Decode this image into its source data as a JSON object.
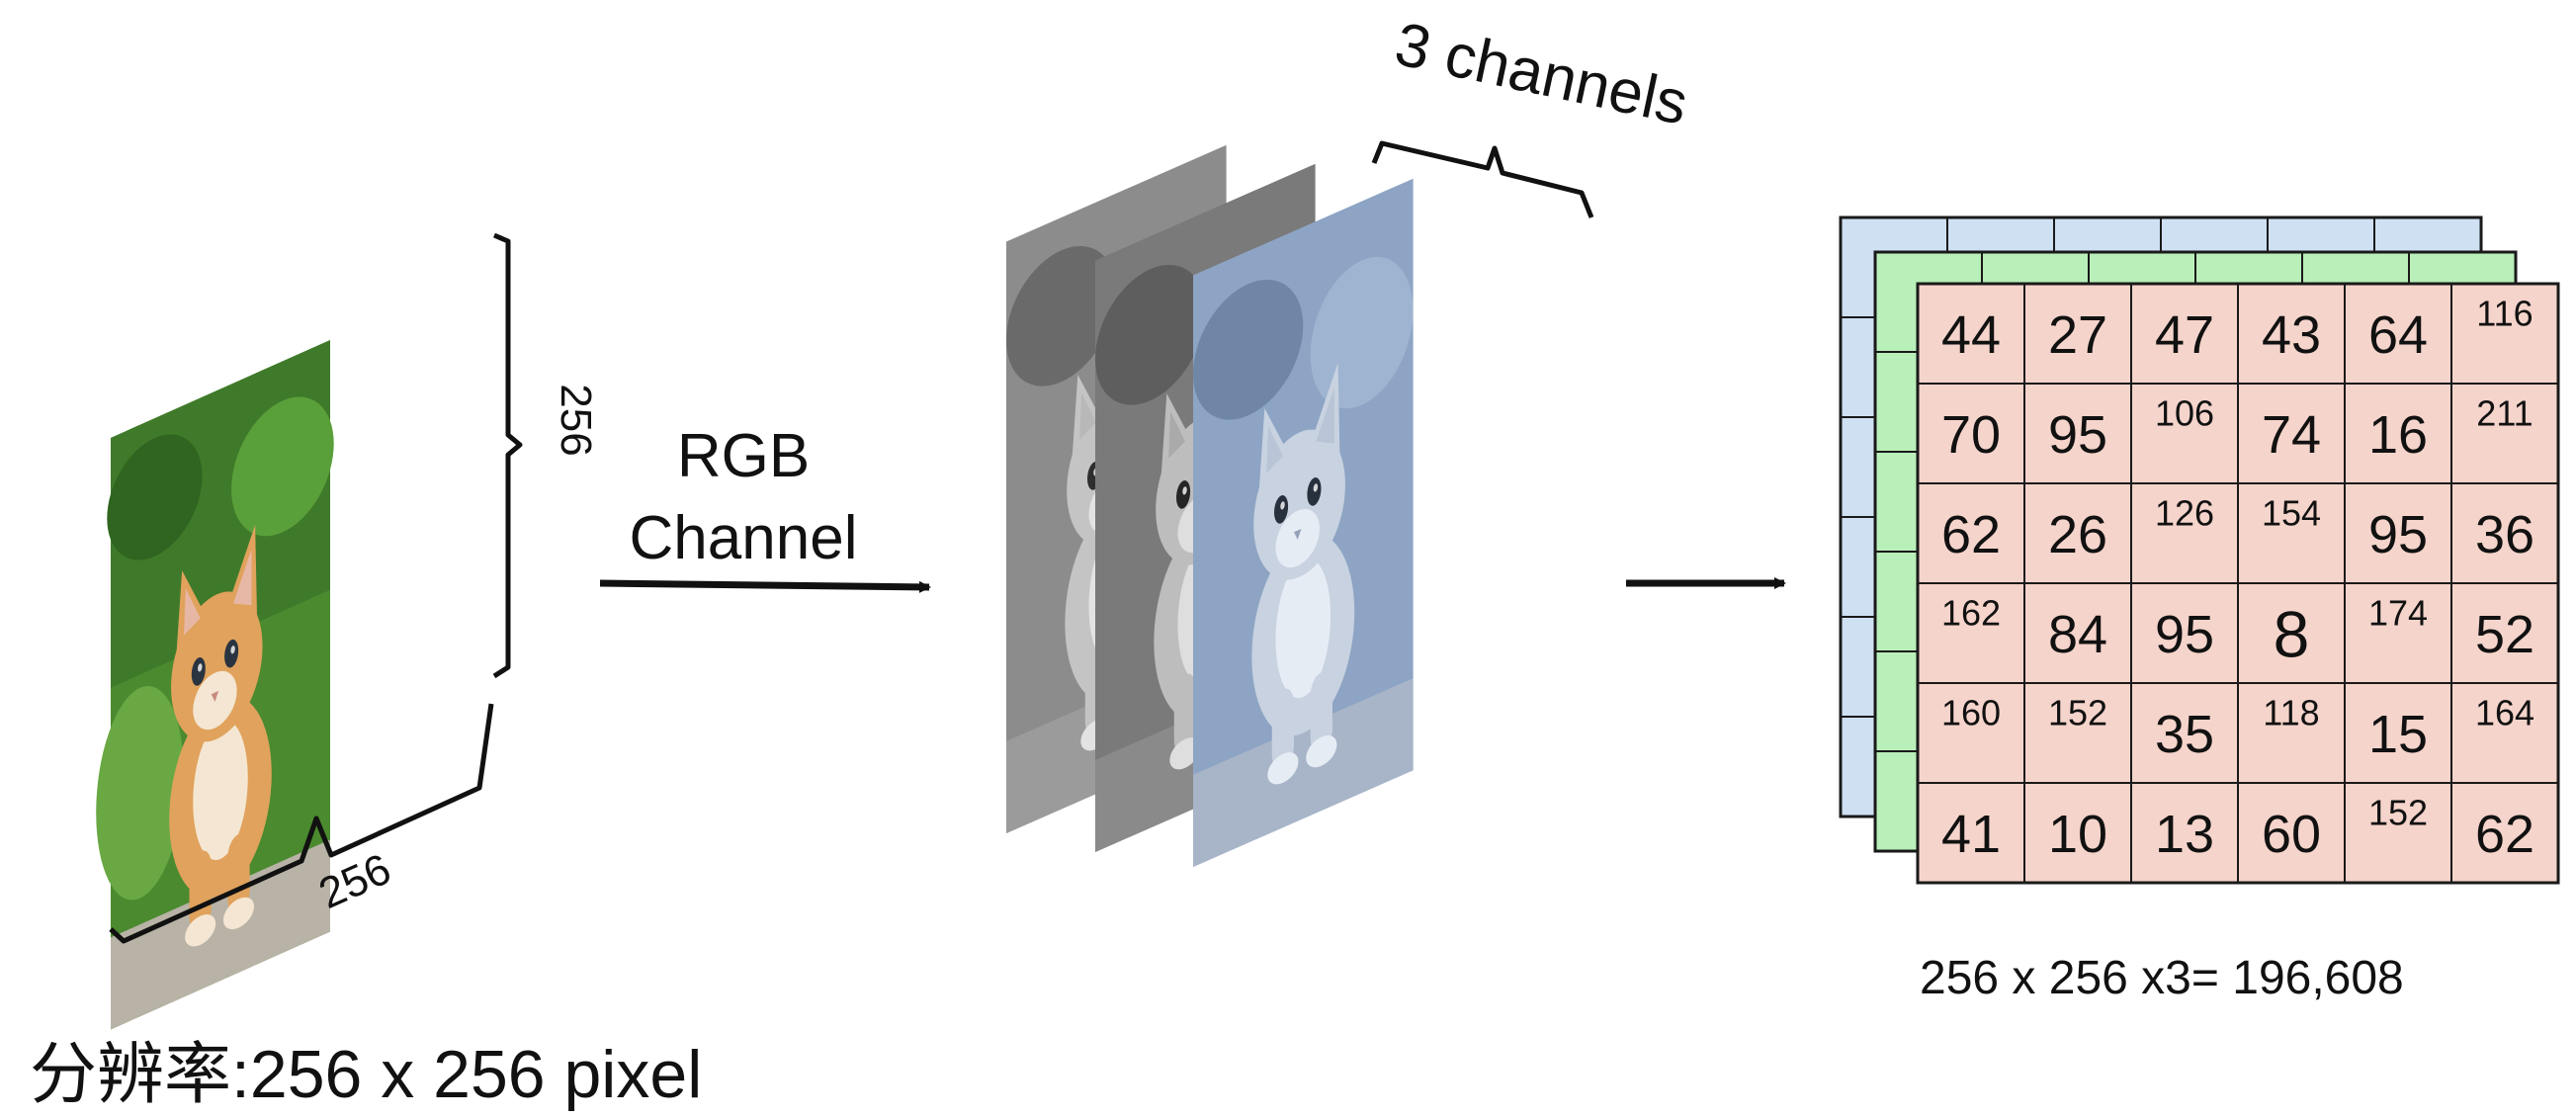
{
  "labels": {
    "height_dim": "256",
    "width_dim": "256",
    "arrow_label_line1": "RGB",
    "arrow_label_line2": "Channel",
    "channels_label": "3 channels",
    "total_formula": "256 x 256 x3= 196,608",
    "resolution": "分辨率:256 x 256 pixel"
  },
  "colors": {
    "back_matrix": "#cfe0f3",
    "middle_matrix": "#b9efb9",
    "front_matrix": "#f5d4cb",
    "grid_line": "#1a1a1a",
    "red_channel_tint": "#8c8c8c",
    "green_channel_tint": "#7a7a7a",
    "blue_channel_tint": "#8da4c4"
  },
  "matrix": {
    "rows": [
      [
        "44",
        "27",
        "47",
        "43",
        "64",
        "116"
      ],
      [
        "70",
        "95",
        "106",
        "74",
        "16",
        "211"
      ],
      [
        "62",
        "26",
        "126",
        "154",
        "95",
        "36"
      ],
      [
        "162",
        "84",
        "95",
        "8",
        "174",
        "52"
      ],
      [
        "160",
        "152",
        "35",
        "118",
        "15",
        "164"
      ],
      [
        "41",
        "10",
        "13",
        "60",
        "152",
        "62"
      ]
    ]
  }
}
